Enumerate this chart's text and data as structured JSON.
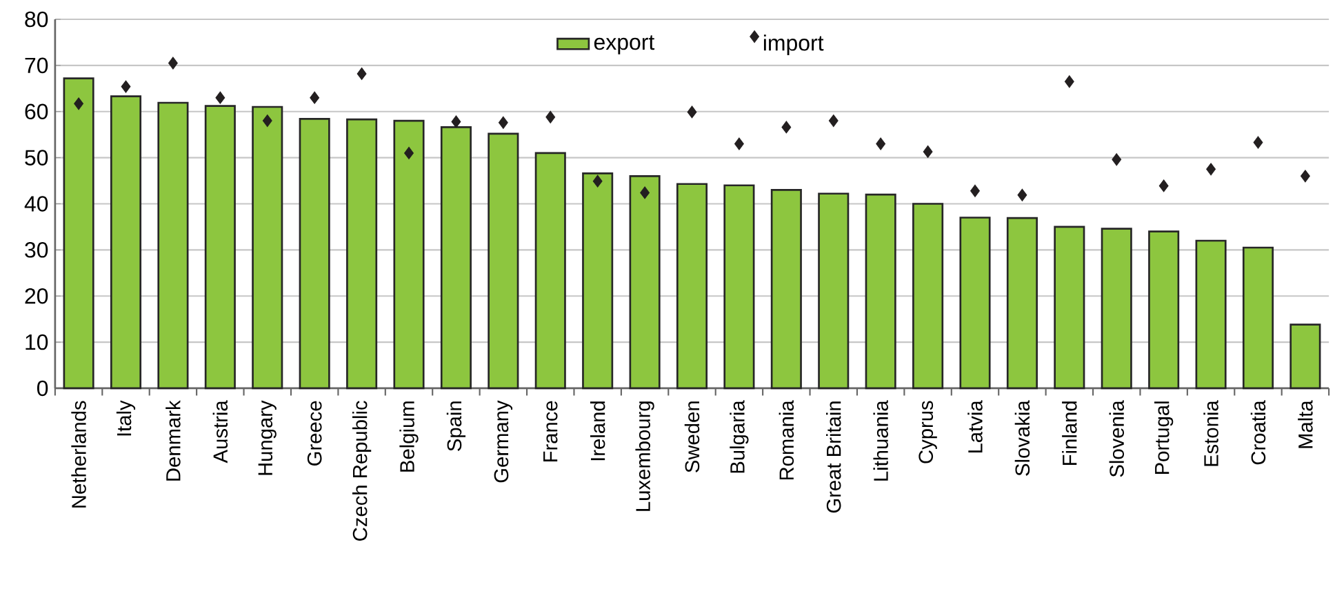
{
  "chart_data": {
    "type": "bar",
    "categories": [
      "Netherlands",
      "Italy",
      "Denmark",
      "Austria",
      "Hungary",
      "Greece",
      "Czech Republic",
      "Belgium",
      "Spain",
      "Germany",
      "France",
      "Ireland",
      "Luxembourg",
      "Sweden",
      "Bulgaria",
      "Romania",
      "Great Britain",
      "Lithuania",
      "Cyprus",
      "Latvia",
      "Slovakia",
      "Finland",
      "Slovenia",
      "Portugal",
      "Estonia",
      "Croatia",
      "Malta"
    ],
    "series": [
      {
        "name": "export",
        "color": "#8dc63f",
        "values": [
          67.2,
          63.3,
          61.9,
          61.2,
          61,
          58.4,
          58.3,
          58,
          56.6,
          55.2,
          51,
          46.6,
          46,
          44.3,
          44,
          43,
          42.2,
          42,
          40,
          37,
          36.9,
          35,
          34.6,
          34,
          32,
          30.5,
          13.8
        ]
      },
      {
        "name": "import",
        "type": "scatter",
        "color": "#231f20",
        "marker": "diamond",
        "values": [
          61.7,
          65.4,
          70.5,
          63,
          58,
          63,
          68.2,
          51,
          57.8,
          57.6,
          58.8,
          44.9,
          42.4,
          59.9,
          53,
          56.6,
          58,
          53,
          51.3,
          42.8,
          41.9,
          66.5,
          49.6,
          43.9,
          47.5,
          53.3,
          46
        ]
      }
    ],
    "ylim": [
      0,
      80
    ],
    "yticks": [
      0,
      10,
      20,
      30,
      40,
      50,
      60,
      70,
      80
    ],
    "grid": "y",
    "legend": "top"
  }
}
